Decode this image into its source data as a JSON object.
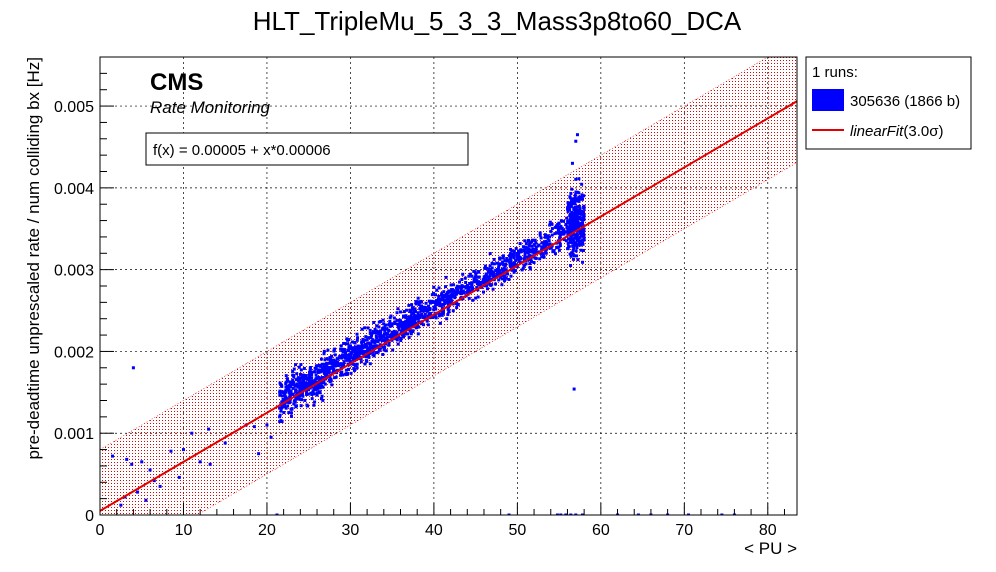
{
  "chart_data": {
    "type": "scatter",
    "title": "HLT_TripleMu_5_3_3_Mass3p8to60_DCA",
    "xlabel": "< PU >",
    "ylabel": "pre-deadtime unprescaled rate / num colliding bx [Hz]",
    "xlim": [
      0,
      83.5
    ],
    "ylim": [
      0,
      0.0056
    ],
    "x_ticks": [
      0,
      10,
      20,
      30,
      40,
      50,
      60,
      70,
      80
    ],
    "y_ticks": [
      0.001,
      0.002,
      0.003,
      0.004,
      0.005
    ],
    "x_tick_labels": [
      "0",
      "10",
      "20",
      "30",
      "40",
      "50",
      "60",
      "70",
      "80"
    ],
    "y_tick_labels": [
      "0.001",
      "0.002",
      "0.003",
      "0.004",
      "0.005"
    ],
    "y_zero_label": "0",
    "grid": true,
    "fit": {
      "intercept": 5e-05,
      "slope": 6e-05,
      "band_halfwidth": 0.00075,
      "color": "#e00000"
    },
    "series": [
      {
        "name": "305636 (1866 b)",
        "color": "#0000ff",
        "clusters": [
          {
            "x_from": 21.5,
            "x_to": 27,
            "y_mean_at_x_from": 0.0014,
            "y_slope": 6e-05,
            "spread": 0.00022,
            "count": 320
          },
          {
            "x_from": 27,
            "x_to": 38,
            "y_mean_at_x_from": 0.00175,
            "y_slope": 6.2e-05,
            "spread": 0.00018,
            "count": 520
          },
          {
            "x_from": 38,
            "x_to": 50,
            "y_mean_at_x_from": 0.00243,
            "y_slope": 5.8e-05,
            "spread": 0.00017,
            "count": 420
          },
          {
            "x_from": 50,
            "x_to": 56,
            "y_mean_at_x_from": 0.00313,
            "y_slope": 6e-05,
            "spread": 0.00016,
            "count": 200
          },
          {
            "x_from": 56,
            "x_to": 58,
            "y_mean_at_x_from": 0.00355,
            "y_slope": 1e-05,
            "spread": 0.00035,
            "count": 320
          }
        ],
        "points": [
          [
            4,
            0.0018
          ],
          [
            56.8,
            0.00154
          ],
          [
            57.2,
            0.00465
          ],
          [
            57.0,
            0.00457
          ],
          [
            56.6,
            0.0043
          ],
          [
            1.5,
            0.00072
          ],
          [
            3.2,
            0.00068
          ],
          [
            3.8,
            0.00062
          ],
          [
            5.0,
            0.00065
          ],
          [
            6.0,
            0.00055
          ],
          [
            4.5,
            0.00028
          ],
          [
            3.0,
            0.00022
          ],
          [
            5.5,
            0.00018
          ],
          [
            7.2,
            0.00035
          ],
          [
            8.5,
            0.00078
          ],
          [
            10.0,
            0.0008
          ],
          [
            11.0,
            0.001
          ],
          [
            13.0,
            0.00105
          ],
          [
            13.2,
            0.00062
          ],
          [
            15.0,
            0.00088
          ],
          [
            17.5,
            0.0011
          ],
          [
            18.5,
            0.00108
          ],
          [
            19.0,
            0.00075
          ],
          [
            20.0,
            0.0011
          ],
          [
            20.5,
            0.00095
          ],
          [
            2.5,
            0.00012
          ],
          [
            6.5,
            0.00042
          ],
          [
            9.5,
            0.00046
          ],
          [
            12.0,
            0.00065
          ],
          [
            21.2,
            0.0
          ],
          [
            49.0,
            0.0
          ],
          [
            54.8,
            0.0
          ],
          [
            55.2,
            0.0
          ],
          [
            55.8,
            0.0
          ],
          [
            56.4,
            0.0
          ],
          [
            57.0,
            0.0
          ],
          [
            57.8,
            0.0
          ],
          [
            62.0,
            0.0
          ],
          [
            64.5,
            0.0
          ],
          [
            66.0,
            0.0
          ],
          [
            68.0,
            0.0
          ],
          [
            70.5,
            0.0
          ],
          [
            74.5,
            0.0
          ],
          [
            76.0,
            0.0
          ]
        ]
      }
    ],
    "legend": {
      "header": "1 runs:",
      "entries": [
        {
          "label": "305636 (1866 b)",
          "color": "#0000ff"
        },
        {
          "label": "linearFit",
          "suffix": "(3.0σ)",
          "color": "#e00000"
        }
      ]
    },
    "annotations": {
      "cms": "CMS",
      "subtitle": "Rate Monitoring",
      "fit_formula": "f(x) = 0.00005 + x*0.00006"
    }
  }
}
